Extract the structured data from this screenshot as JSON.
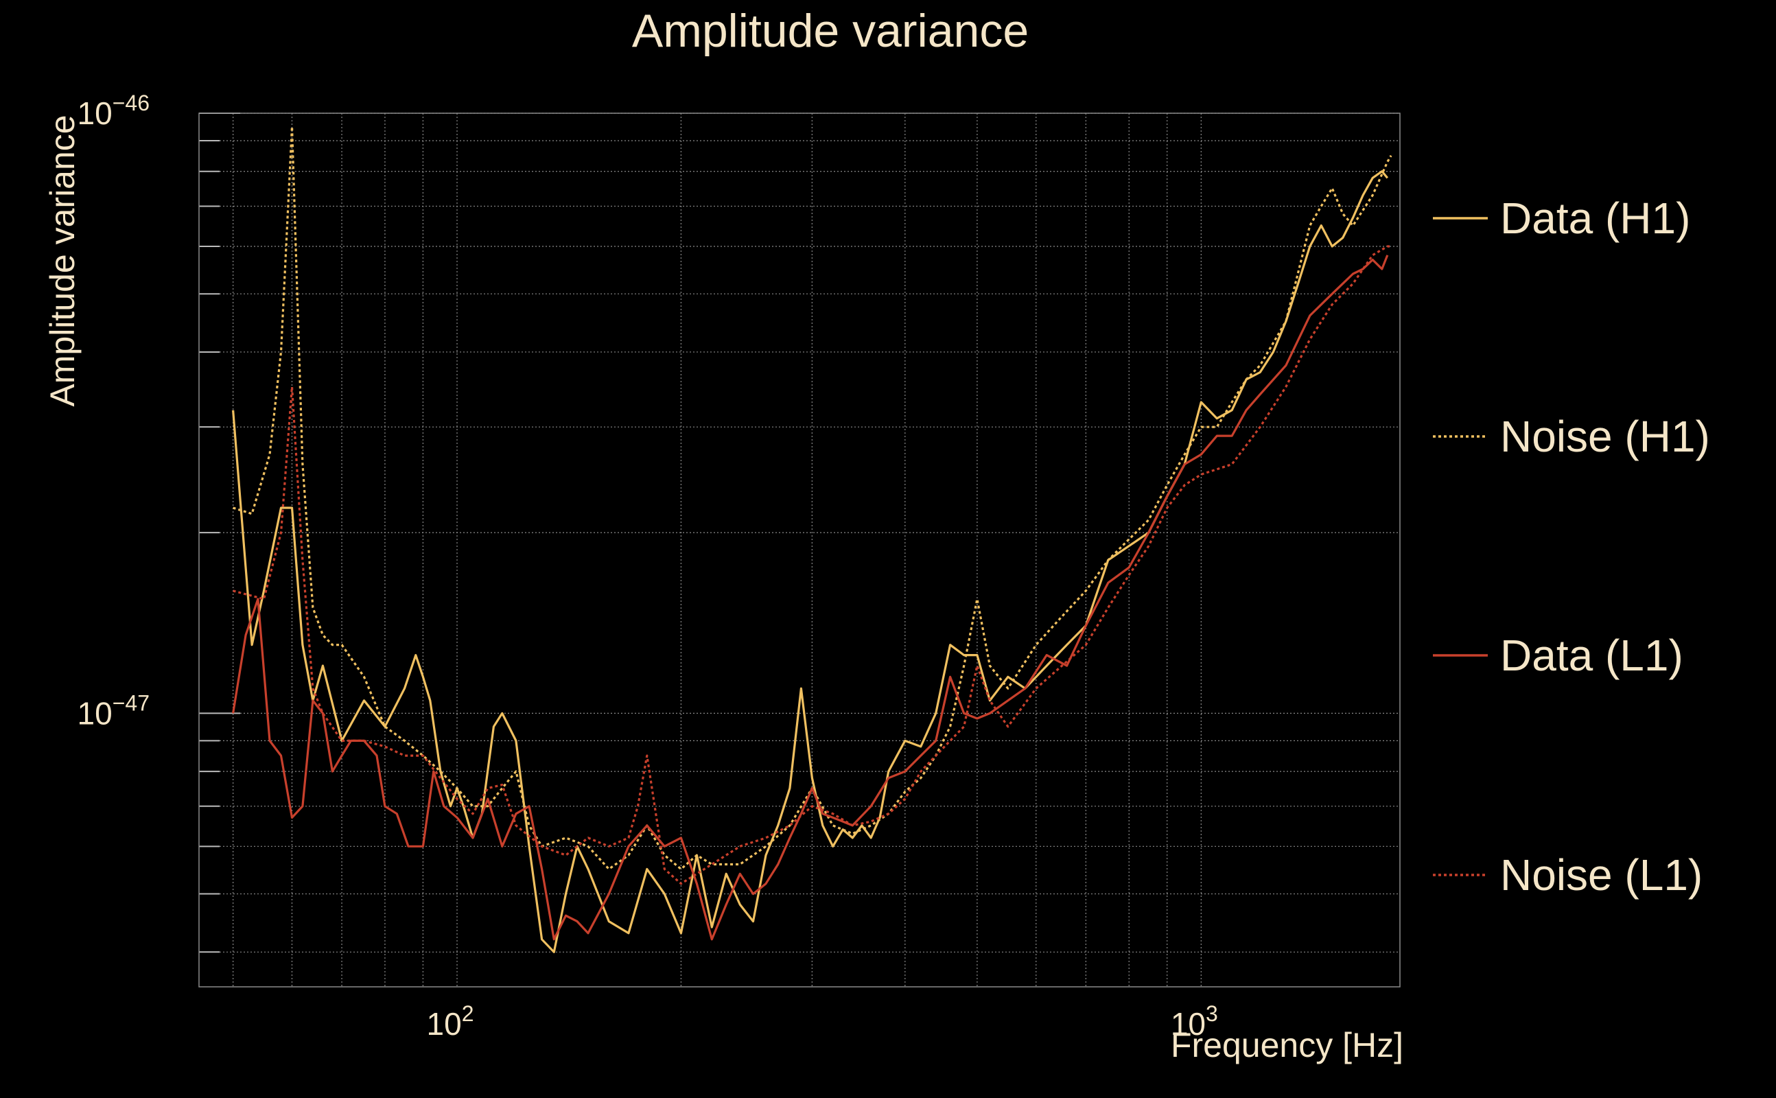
{
  "colors": {
    "background": "#000000",
    "text": "#f5e6c8",
    "grid": "#8a8a8a",
    "data_h1": "#f0c060",
    "noise_h1": "#f0c060",
    "data_l1": "#c8402c",
    "noise_l1": "#c8402c"
  },
  "chart_data": {
    "type": "line",
    "title": "Amplitude variance",
    "xlabel": "Frequency [Hz]",
    "ylabel": "Amplitude variance",
    "xscale": "log",
    "yscale": "log",
    "xlim": [
      45,
      1850
    ],
    "ylim": [
      3.5e-48,
      1e-46
    ],
    "grid": true,
    "legend_placement": "right-outside",
    "xticks": [
      {
        "value": 100,
        "label": "10",
        "exp": "2"
      },
      {
        "value": 1000,
        "label": "10",
        "exp": "3"
      }
    ],
    "yticks": [
      {
        "value": 1e-47,
        "label": "10",
        "exp": "−47"
      },
      {
        "value": 1e-46,
        "label": "10",
        "exp": "−46"
      }
    ],
    "series": [
      {
        "name": "Data (H1)",
        "style": "solid",
        "x": [
          50,
          53,
          55,
          58,
          60,
          62,
          64,
          66,
          70,
          75,
          80,
          85,
          88,
          90,
          92,
          95,
          98,
          100,
          102,
          105,
          108,
          112,
          115,
          120,
          125,
          130,
          135,
          140,
          145,
          150,
          160,
          170,
          180,
          190,
          200,
          210,
          220,
          230,
          240,
          250,
          260,
          270,
          280,
          290,
          300,
          310,
          320,
          330,
          340,
          350,
          360,
          370,
          380,
          400,
          420,
          440,
          460,
          480,
          500,
          520,
          550,
          580,
          620,
          660,
          700,
          750,
          800,
          850,
          900,
          950,
          1000,
          1050,
          1100,
          1150,
          1200,
          1250,
          1300,
          1350,
          1400,
          1450,
          1500,
          1550,
          1600,
          1650,
          1700,
          1750,
          1780
        ],
        "y": [
          3.2e-47,
          1.3e-47,
          1.6e-47,
          2.2e-47,
          2.2e-47,
          1.3e-47,
          1.05e-47,
          1.2e-47,
          9e-48,
          1.05e-47,
          9.5e-48,
          1.1e-47,
          1.25e-47,
          1.15e-47,
          1.05e-47,
          8e-48,
          7e-48,
          7.5e-48,
          7e-48,
          6.2e-48,
          6.8e-48,
          9.5e-48,
          1e-47,
          9e-48,
          6e-48,
          4.2e-48,
          4e-48,
          5e-48,
          6e-48,
          5.5e-48,
          4.5e-48,
          4.3e-48,
          5.5e-48,
          5e-48,
          4.3e-48,
          5.8e-48,
          4.4e-48,
          5.4e-48,
          4.8e-48,
          4.5e-48,
          5.8e-48,
          6.5e-48,
          7.5e-48,
          1.1e-47,
          7.8e-48,
          6.5e-48,
          6e-48,
          6.4e-48,
          6.2e-48,
          6.5e-48,
          6.2e-48,
          6.7e-48,
          8e-48,
          9e-48,
          8.8e-48,
          1e-47,
          1.3e-47,
          1.25e-47,
          1.25e-47,
          1.05e-47,
          1.15e-47,
          1.1e-47,
          1.2e-47,
          1.3e-47,
          1.4e-47,
          1.8e-47,
          1.9e-47,
          2e-47,
          2.3e-47,
          2.6e-47,
          3.3e-47,
          3.1e-47,
          3.2e-47,
          3.6e-47,
          3.7e-47,
          4e-47,
          4.5e-47,
          5.2e-47,
          6e-47,
          6.5e-47,
          6e-47,
          6.2e-47,
          6.7e-47,
          7.3e-47,
          7.8e-47,
          8e-47,
          7.8e-47
        ]
      },
      {
        "name": "Noise (H1)",
        "style": "dotted",
        "x": [
          50,
          53,
          56,
          58,
          60,
          62,
          64,
          66,
          68,
          70,
          75,
          80,
          85,
          90,
          95,
          100,
          105,
          110,
          115,
          120,
          125,
          130,
          140,
          150,
          160,
          170,
          180,
          190,
          200,
          210,
          220,
          240,
          260,
          280,
          300,
          320,
          340,
          360,
          380,
          400,
          420,
          440,
          460,
          480,
          500,
          520,
          550,
          600,
          650,
          700,
          750,
          800,
          850,
          900,
          950,
          1000,
          1050,
          1100,
          1150,
          1200,
          1300,
          1400,
          1450,
          1500,
          1550,
          1600,
          1700,
          1780,
          1800
        ],
        "y": [
          2.2e-47,
          2.15e-47,
          2.7e-47,
          4e-47,
          9.5e-47,
          2.6e-47,
          1.5e-47,
          1.35e-47,
          1.3e-47,
          1.3e-47,
          1.15e-47,
          9.5e-48,
          9e-48,
          8.5e-48,
          8e-48,
          7.5e-48,
          7e-48,
          7e-48,
          7.5e-48,
          8e-48,
          6.5e-48,
          6e-48,
          6.2e-48,
          6e-48,
          5.5e-48,
          5.8e-48,
          6.5e-48,
          5.8e-48,
          5.5e-48,
          5.8e-48,
          5.6e-48,
          5.6e-48,
          6e-48,
          6.5e-48,
          7.5e-48,
          6.5e-48,
          6.3e-48,
          6.5e-48,
          6.8e-48,
          7.4e-48,
          7.8e-48,
          8.5e-48,
          9.5e-48,
          1.2e-47,
          1.55e-47,
          1.2e-47,
          1.1e-47,
          1.3e-47,
          1.45e-47,
          1.6e-47,
          1.8e-47,
          1.95e-47,
          2.1e-47,
          2.4e-47,
          2.7e-47,
          3e-47,
          3e-47,
          3.3e-47,
          3.6e-47,
          3.8e-47,
          4.5e-47,
          6.5e-47,
          7e-47,
          7.5e-47,
          6.8e-47,
          6.5e-47,
          7.3e-47,
          8.3e-47,
          8.5e-47
        ]
      },
      {
        "name": "Data (L1)",
        "style": "solid",
        "x": [
          50,
          52,
          54,
          56,
          58,
          60,
          62,
          64,
          66,
          68,
          70,
          72,
          75,
          78,
          80,
          83,
          86,
          90,
          93,
          96,
          100,
          105,
          110,
          115,
          120,
          125,
          130,
          135,
          140,
          145,
          150,
          160,
          170,
          180,
          190,
          200,
          210,
          220,
          230,
          240,
          250,
          260,
          270,
          280,
          290,
          300,
          310,
          320,
          330,
          340,
          360,
          380,
          400,
          420,
          440,
          460,
          480,
          500,
          520,
          550,
          580,
          620,
          660,
          700,
          750,
          800,
          850,
          900,
          950,
          1000,
          1050,
          1100,
          1150,
          1200,
          1300,
          1400,
          1500,
          1550,
          1600,
          1650,
          1700,
          1750,
          1780
        ],
        "y": [
          1e-47,
          1.35e-47,
          1.55e-47,
          9e-48,
          8.5e-48,
          6.7e-48,
          7e-48,
          1.05e-47,
          1e-47,
          8e-48,
          8.5e-48,
          9e-48,
          9e-48,
          8.5e-48,
          7e-48,
          6.8e-48,
          6e-48,
          6e-48,
          8e-48,
          7e-48,
          6.7e-48,
          6.2e-48,
          7.2e-48,
          6e-48,
          6.8e-48,
          7e-48,
          5.5e-48,
          4.2e-48,
          4.6e-48,
          4.5e-48,
          4.3e-48,
          5e-48,
          6e-48,
          6.5e-48,
          6e-48,
          6.2e-48,
          5.2e-48,
          4.2e-48,
          4.8e-48,
          5.4e-48,
          5e-48,
          5.2e-48,
          5.6e-48,
          6.2e-48,
          6.8e-48,
          7.5e-48,
          6.8e-48,
          6.7e-48,
          6.6e-48,
          6.5e-48,
          7e-48,
          7.8e-48,
          8e-48,
          8.5e-48,
          9e-48,
          1.15e-47,
          1e-47,
          9.8e-48,
          1e-47,
          1.05e-47,
          1.1e-47,
          1.25e-47,
          1.2e-47,
          1.4e-47,
          1.65e-47,
          1.75e-47,
          2e-47,
          2.3e-47,
          2.6e-47,
          2.7e-47,
          2.9e-47,
          2.9e-47,
          3.2e-47,
          3.4e-47,
          3.8e-47,
          4.6e-47,
          5e-47,
          5.2e-47,
          5.4e-47,
          5.5e-47,
          5.7e-47,
          5.5e-47,
          5.8e-47
        ]
      },
      {
        "name": "Noise (L1)",
        "style": "dotted",
        "x": [
          50,
          55,
          58,
          60,
          62,
          64,
          66,
          70,
          75,
          80,
          85,
          90,
          95,
          100,
          105,
          110,
          115,
          120,
          130,
          140,
          150,
          160,
          170,
          175,
          180,
          185,
          190,
          200,
          220,
          240,
          260,
          280,
          300,
          320,
          340,
          360,
          380,
          400,
          420,
          440,
          460,
          480,
          500,
          520,
          550,
          600,
          650,
          700,
          750,
          800,
          850,
          900,
          950,
          1000,
          1100,
          1200,
          1300,
          1400,
          1500,
          1600,
          1700,
          1780,
          1800
        ],
        "y": [
          1.6e-47,
          1.55e-47,
          2e-47,
          3.5e-47,
          1.8e-47,
          1.1e-47,
          1e-47,
          9e-48,
          9e-48,
          8.8e-48,
          8.5e-48,
          8.5e-48,
          7.8e-48,
          7.2e-48,
          6.8e-48,
          7.5e-48,
          7.6e-48,
          6.5e-48,
          6e-48,
          5.8e-48,
          6.2e-48,
          6e-48,
          6.2e-48,
          7e-48,
          8.5e-48,
          6.8e-48,
          5.5e-48,
          5.2e-48,
          5.6e-48,
          6e-48,
          6.2e-48,
          6.5e-48,
          7e-48,
          6.8e-48,
          6.5e-48,
          6.6e-48,
          6.8e-48,
          7.2e-48,
          8e-48,
          8.5e-48,
          9e-48,
          9.5e-48,
          1.2e-47,
          1.05e-47,
          9.5e-48,
          1.1e-47,
          1.2e-47,
          1.3e-47,
          1.5e-47,
          1.7e-47,
          1.9e-47,
          2.2e-47,
          2.4e-47,
          2.5e-47,
          2.6e-47,
          3e-47,
          3.5e-47,
          4.2e-47,
          4.8e-47,
          5.2e-47,
          5.8e-47,
          6e-47,
          6e-47
        ]
      }
    ]
  }
}
